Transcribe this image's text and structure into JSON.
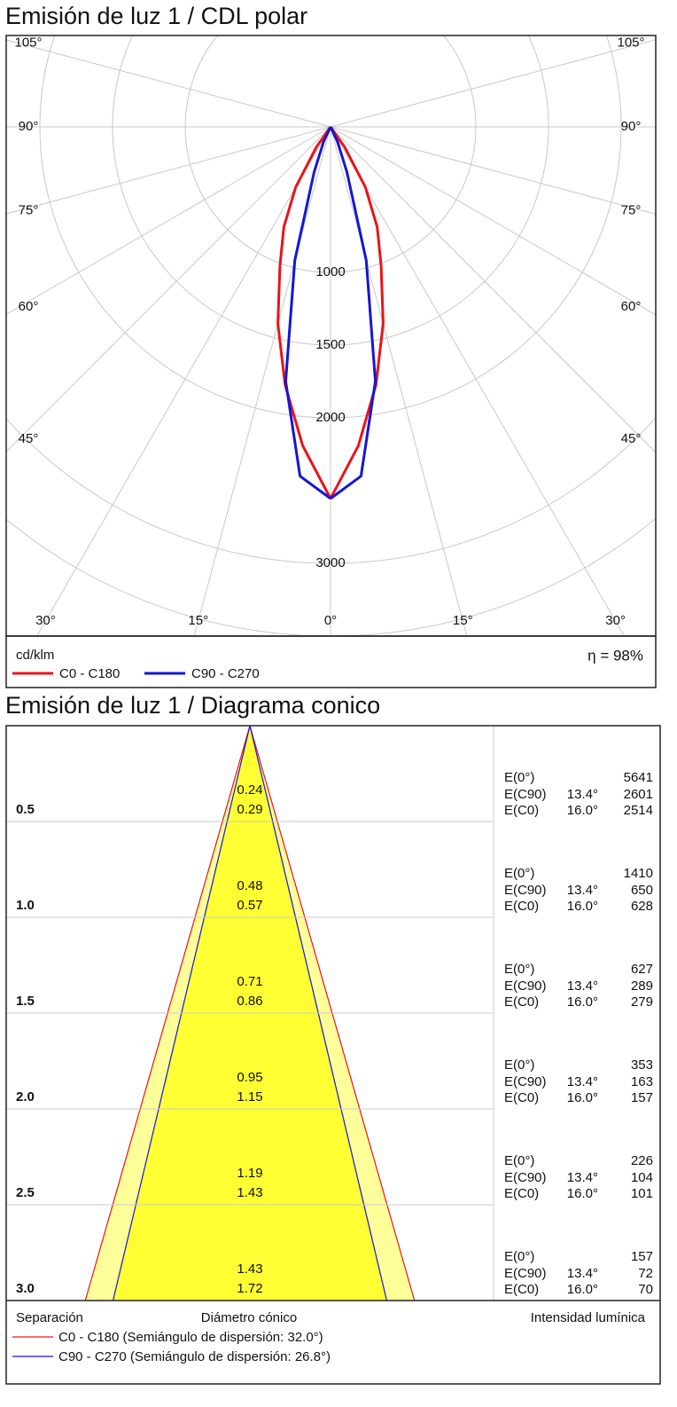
{
  "chart_data": [
    {
      "type": "polar",
      "title": "Emisión de luz 1 / CDL polar",
      "unit": "cd/klm",
      "efficiency_label": "η = 98%",
      "x": [
        0,
        5,
        10,
        15,
        20,
        25,
        30,
        35,
        40
      ],
      "series": [
        {
          "name": "C0 - C180",
          "color": "#e8141a",
          "values": [
            2555,
            2200,
            1800,
            1400,
            1018,
            760,
            480,
            170,
            0
          ]
        },
        {
          "name": "C90 - C270",
          "color": "#1515d8",
          "values": [
            2555,
            2410,
            1776,
            950,
            330,
            114,
            0,
            0,
            0
          ]
        }
      ],
      "rlim": [
        0,
        3500
      ],
      "rticks": [
        1000,
        1500,
        2000,
        3000
      ],
      "angle_ticks": [
        {
          "value": 0,
          "label": "0°"
        },
        {
          "value": 15,
          "label": "15°"
        },
        {
          "value": 30,
          "label": "30°"
        },
        {
          "value": 45,
          "label": "45°"
        },
        {
          "value": 60,
          "label": "60°"
        },
        {
          "value": 75,
          "label": "75°"
        },
        {
          "value": 90,
          "label": "90°"
        },
        {
          "value": 105,
          "label": "105°"
        }
      ],
      "grid": true
    },
    {
      "type": "cone",
      "title": "Emisión de luz 1 / Diagrama conico",
      "y_label": "Separación",
      "x_label": "Diámetro cónico",
      "value_label": "Intensidad lumínica",
      "ylim": [
        0,
        3
      ],
      "distances": [
        0.5,
        {
          "value": 1,
          "label": "1.0"
        },
        1.5,
        {
          "value": 2,
          "label": "2.0"
        },
        2.5,
        {
          "value": 3,
          "label": "3.0"
        }
      ],
      "center_label": "E(0°)",
      "center_illuminance": [
        5641,
        1410,
        627,
        353,
        226,
        157
      ],
      "series": [
        {
          "name": "C0 - C180 (Semiángulo de dispersión: 32.0°)",
          "color": "#e8141a",
          "fill": "#ffff99",
          "label": "E(C0)",
          "angle": {
            "value": 16,
            "label": "16.0°"
          },
          "diameters": [
            0.29,
            0.57,
            0.86,
            1.15,
            1.43,
            1.72
          ],
          "illuminance": [
            2514,
            628,
            279,
            157,
            101,
            70
          ]
        },
        {
          "name": "C90 - C270 (Semiángulo de dispersión: 26.8°)",
          "color": "#1515d8",
          "fill": "#ffff33",
          "label": "E(C90)",
          "angle": {
            "value": 13.4,
            "label": "13.4°"
          },
          "diameters": [
            0.24,
            0.48,
            0.71,
            0.95,
            1.19,
            1.43
          ],
          "illuminance": [
            2601,
            650,
            289,
            163,
            104,
            72
          ]
        }
      ]
    }
  ]
}
